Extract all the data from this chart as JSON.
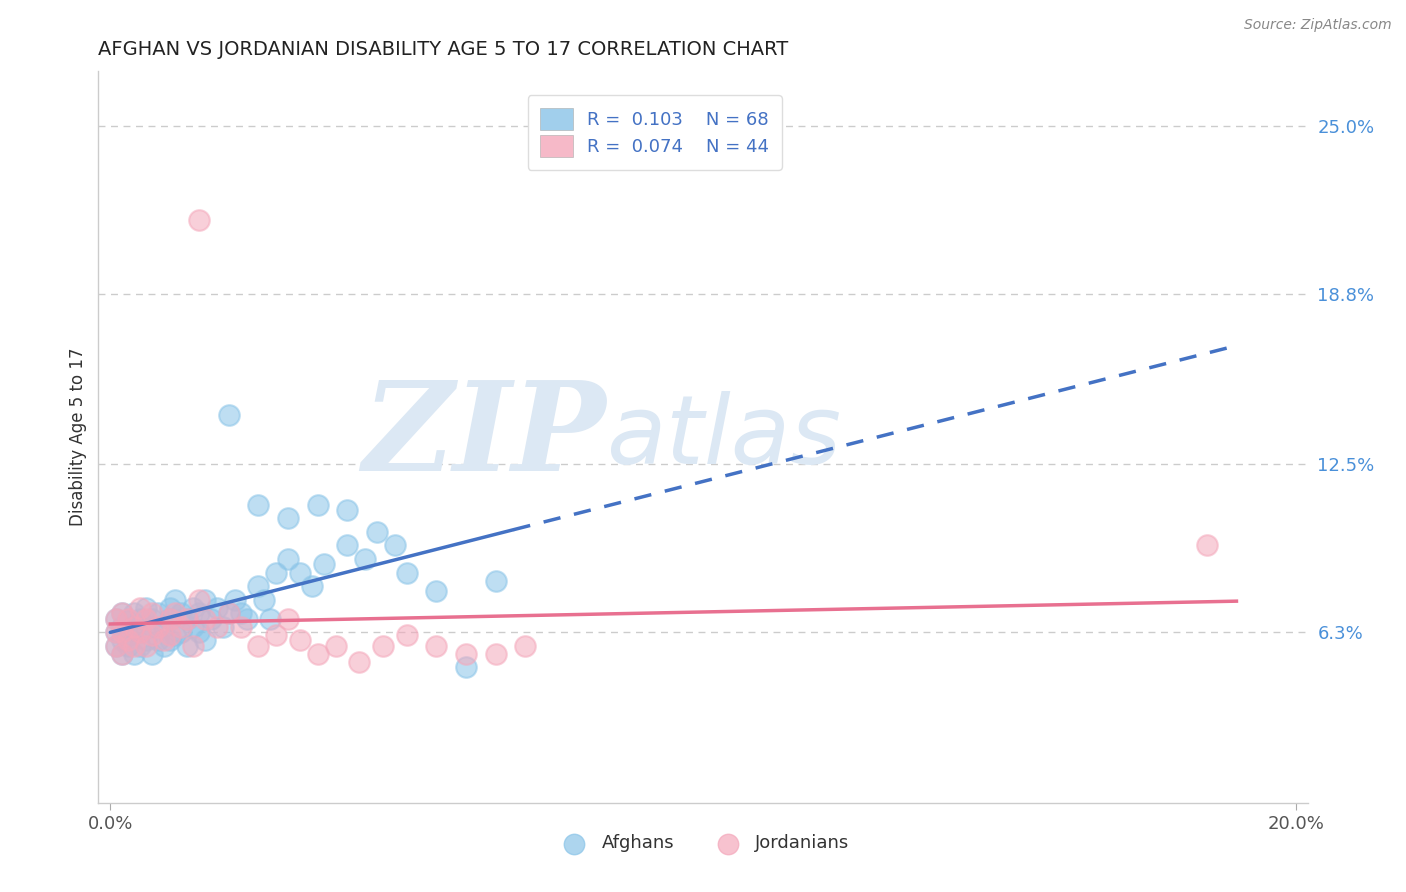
{
  "title": "AFGHAN VS JORDANIAN DISABILITY AGE 5 TO 17 CORRELATION CHART",
  "source": "Source: ZipAtlas.com",
  "ylabel": "Disability Age 5 to 17",
  "xlim": [
    -0.002,
    0.202
  ],
  "ylim": [
    0.0,
    0.27
  ],
  "ytick_labels_right": [
    "6.3%",
    "12.5%",
    "18.8%",
    "25.0%"
  ],
  "ytick_vals_right": [
    0.063,
    0.125,
    0.188,
    0.25
  ],
  "legend_R1": "0.103",
  "legend_N1": "68",
  "legend_R2": "0.074",
  "legend_N2": "44",
  "afghan_color": "#8ac4e8",
  "jordanian_color": "#f4a8bb",
  "afghan_line_color": "#4472c4",
  "jordanian_line_color": "#e87090",
  "title_color": "#222222",
  "source_color": "#888888",
  "watermark_color": "#dce8f4",
  "background_color": "#ffffff",
  "afghans_x": [
    0.001,
    0.001,
    0.001,
    0.002,
    0.002,
    0.002,
    0.002,
    0.003,
    0.003,
    0.003,
    0.004,
    0.004,
    0.004,
    0.005,
    0.005,
    0.005,
    0.006,
    0.006,
    0.007,
    0.007,
    0.007,
    0.008,
    0.008,
    0.009,
    0.009,
    0.01,
    0.01,
    0.01,
    0.011,
    0.011,
    0.012,
    0.012,
    0.013,
    0.013,
    0.014,
    0.014,
    0.015,
    0.015,
    0.016,
    0.016,
    0.017,
    0.018,
    0.019,
    0.02,
    0.021,
    0.022,
    0.023,
    0.025,
    0.026,
    0.027,
    0.028,
    0.03,
    0.032,
    0.034,
    0.036,
    0.04,
    0.043,
    0.045,
    0.048,
    0.05,
    0.02,
    0.025,
    0.03,
    0.035,
    0.04,
    0.055,
    0.06,
    0.065
  ],
  "afghans_y": [
    0.063,
    0.068,
    0.058,
    0.065,
    0.07,
    0.06,
    0.055,
    0.067,
    0.062,
    0.058,
    0.07,
    0.065,
    0.055,
    0.068,
    0.063,
    0.058,
    0.072,
    0.06,
    0.068,
    0.065,
    0.055,
    0.07,
    0.06,
    0.065,
    0.058,
    0.072,
    0.068,
    0.06,
    0.075,
    0.062,
    0.07,
    0.063,
    0.068,
    0.058,
    0.072,
    0.065,
    0.07,
    0.063,
    0.075,
    0.06,
    0.068,
    0.072,
    0.065,
    0.07,
    0.075,
    0.07,
    0.068,
    0.08,
    0.075,
    0.068,
    0.085,
    0.09,
    0.085,
    0.08,
    0.088,
    0.095,
    0.09,
    0.1,
    0.095,
    0.085,
    0.143,
    0.11,
    0.105,
    0.11,
    0.108,
    0.078,
    0.05,
    0.082
  ],
  "jordanians_x": [
    0.001,
    0.001,
    0.001,
    0.002,
    0.002,
    0.002,
    0.003,
    0.003,
    0.004,
    0.004,
    0.005,
    0.005,
    0.006,
    0.006,
    0.007,
    0.007,
    0.008,
    0.009,
    0.01,
    0.01,
    0.011,
    0.012,
    0.013,
    0.014,
    0.015,
    0.016,
    0.018,
    0.02,
    0.022,
    0.025,
    0.028,
    0.03,
    0.032,
    0.035,
    0.038,
    0.042,
    0.046,
    0.05,
    0.055,
    0.06,
    0.065,
    0.07,
    0.185,
    0.015
  ],
  "jordanians_y": [
    0.063,
    0.068,
    0.058,
    0.07,
    0.063,
    0.055,
    0.068,
    0.06,
    0.065,
    0.058,
    0.072,
    0.063,
    0.068,
    0.058,
    0.07,
    0.062,
    0.065,
    0.06,
    0.068,
    0.062,
    0.07,
    0.065,
    0.068,
    0.058,
    0.075,
    0.068,
    0.065,
    0.07,
    0.065,
    0.058,
    0.062,
    0.068,
    0.06,
    0.055,
    0.058,
    0.052,
    0.058,
    0.062,
    0.058,
    0.055,
    0.055,
    0.058,
    0.095,
    0.215
  ],
  "line_solid_end": 0.068,
  "line_dash_start": 0.068,
  "line_end": 0.19
}
